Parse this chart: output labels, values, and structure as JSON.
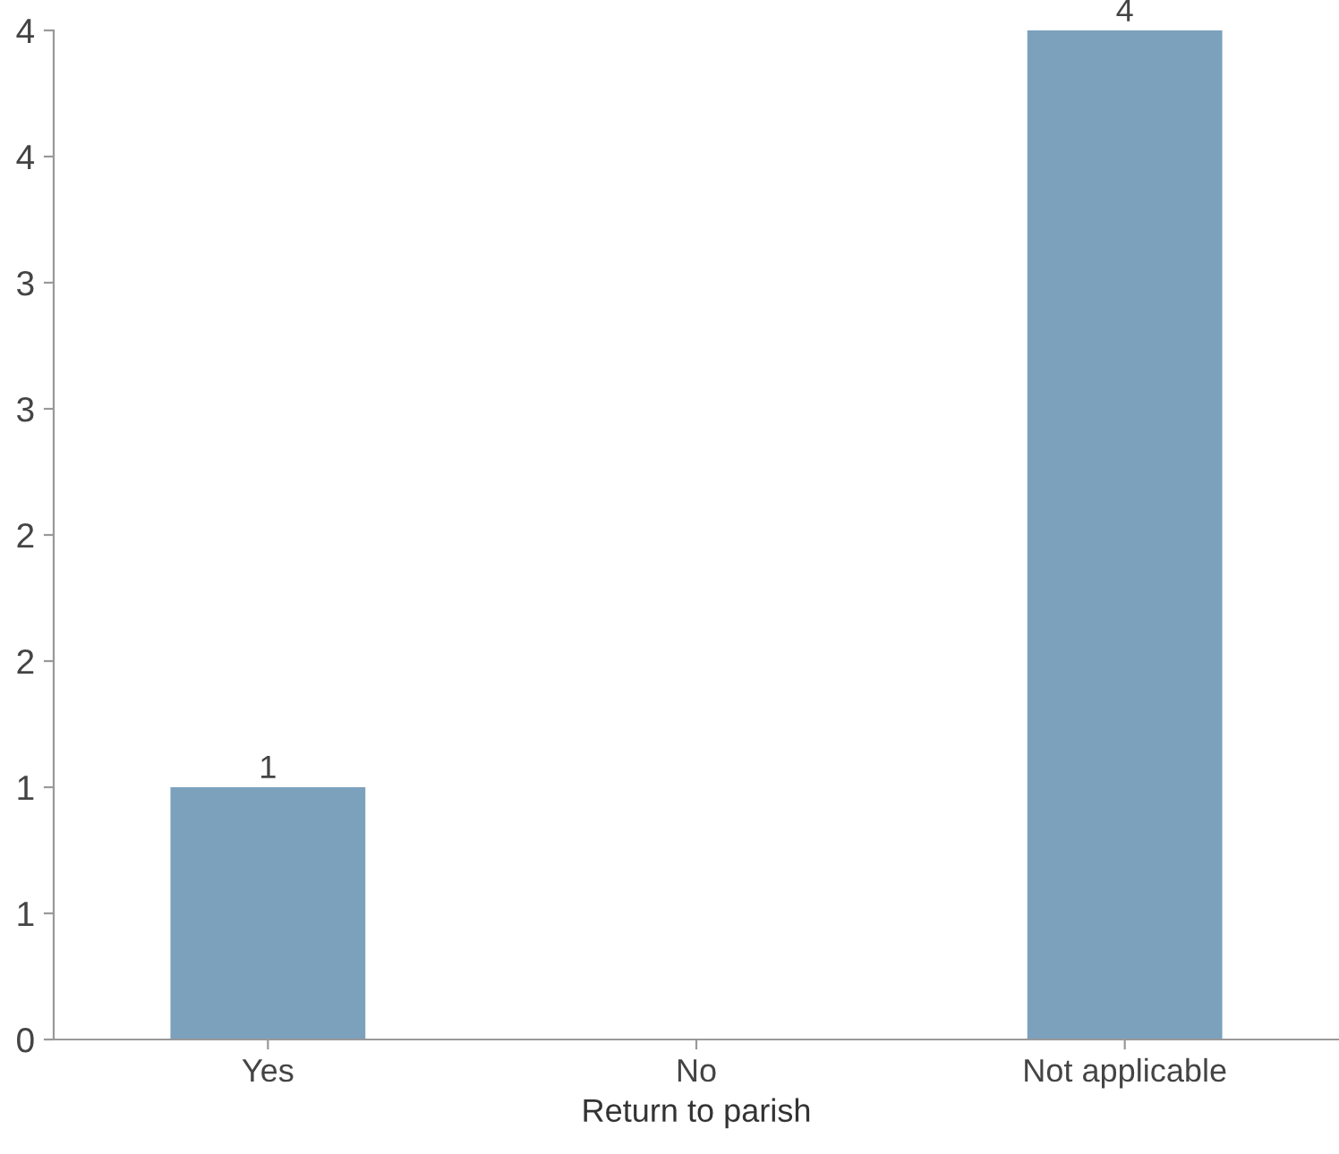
{
  "chart_data": {
    "type": "bar",
    "xlabel": "Return to parish",
    "categories": [
      "Yes",
      "No",
      "Not applicable"
    ],
    "values": [
      1,
      0,
      4
    ],
    "color": "#7ba1bd",
    "value_labels": [
      "1",
      null,
      "4"
    ],
    "ylim": [
      0,
      4
    ],
    "yticks": [
      0,
      {
        "value": 0.5,
        "label": "1"
      },
      1,
      {
        "value": 1.5,
        "label": "2"
      },
      2,
      {
        "value": 2.5,
        "label": "3"
      },
      3,
      {
        "value": 3.5,
        "label": "4"
      },
      4
    ],
    "grid": false,
    "legend": false
  }
}
